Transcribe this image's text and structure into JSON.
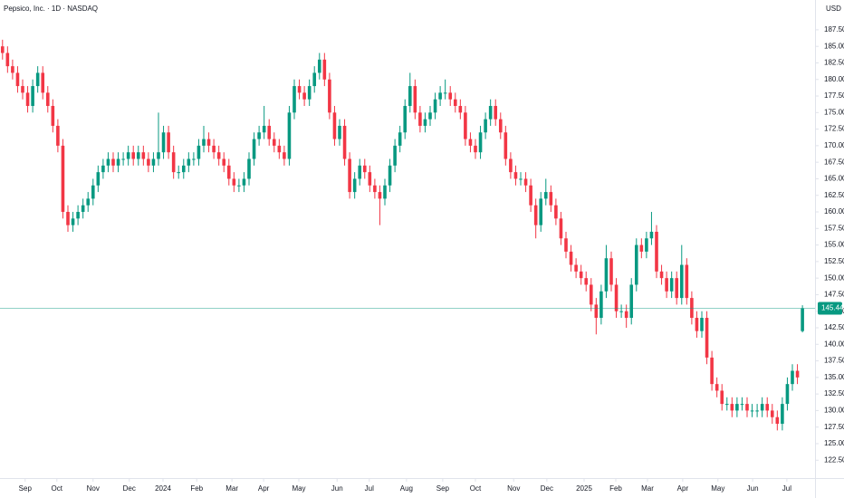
{
  "chart_data": {
    "type": "candlestick",
    "title": "Pepsico, Inc. · 1D · NASDAQ",
    "currency": "USD",
    "up_color": "#089981",
    "down_color": "#f23645",
    "grid": false,
    "last_price_line": true,
    "open": [
      185,
      184,
      182,
      181,
      179,
      178,
      176,
      179,
      181,
      178,
      176,
      173,
      170,
      160,
      158,
      159,
      160,
      161,
      162,
      164,
      166,
      167,
      168,
      167,
      168,
      168,
      169,
      168,
      169,
      168,
      167,
      168,
      169,
      172,
      169,
      166,
      166,
      167,
      168,
      168,
      170,
      171,
      170,
      169,
      168,
      167,
      165,
      164,
      164,
      165,
      168,
      171,
      172,
      173,
      171,
      170,
      169,
      168,
      175,
      179,
      178,
      177,
      179,
      181,
      183,
      180,
      175,
      171,
      173,
      168,
      163,
      165,
      167,
      166,
      164,
      163,
      162,
      164,
      167,
      170,
      172,
      176,
      179,
      175,
      173,
      174,
      175,
      177,
      178,
      178,
      177,
      176,
      175,
      171,
      170,
      169,
      172,
      174,
      176,
      174,
      172,
      168,
      166,
      165,
      165,
      164,
      161,
      158,
      162,
      163,
      161,
      159,
      156,
      154,
      152,
      151,
      150,
      149,
      146,
      144,
      148,
      153,
      149,
      145,
      145,
      144,
      149,
      155,
      154,
      156,
      157,
      151,
      150,
      148,
      150,
      147,
      152,
      147,
      144,
      142,
      144,
      138,
      134,
      133,
      131,
      131,
      130,
      131,
      131,
      130,
      130,
      130,
      131,
      130,
      129,
      128,
      131,
      134,
      136,
      142
    ],
    "high": [
      186,
      185,
      183,
      182,
      180,
      179,
      180,
      182,
      182,
      179,
      177,
      174,
      171,
      161,
      160,
      161,
      162,
      163,
      165,
      167,
      168,
      169,
      169,
      169,
      169,
      170,
      170,
      170,
      170,
      169,
      169,
      175,
      173,
      173,
      170,
      167,
      168,
      169,
      169,
      171,
      173,
      172,
      171,
      170,
      169,
      168,
      166,
      165,
      166,
      169,
      172,
      173,
      176,
      174,
      172,
      171,
      170,
      176,
      180,
      180,
      179,
      180,
      182,
      184,
      184,
      181,
      176,
      174,
      174,
      169,
      166,
      168,
      168,
      167,
      165,
      164,
      165,
      168,
      171,
      173,
      177,
      181,
      180,
      176,
      175,
      176,
      178,
      179,
      180,
      179,
      178,
      177,
      176,
      172,
      171,
      173,
      175,
      177,
      177,
      175,
      173,
      169,
      167,
      166,
      166,
      165,
      162,
      163,
      165,
      164,
      162,
      160,
      157,
      155,
      153,
      152,
      151,
      150,
      147,
      149,
      155,
      154,
      150,
      146,
      146,
      150,
      156,
      156,
      157,
      160,
      158,
      152,
      151,
      151,
      151,
      155,
      153,
      148,
      145,
      145,
      145,
      139,
      135,
      134,
      132,
      132,
      132,
      132,
      132,
      131,
      131,
      132,
      132,
      131,
      130,
      132,
      135,
      137,
      137,
      145.9
    ],
    "low": [
      183,
      181,
      180,
      178,
      177,
      175,
      175,
      178,
      177,
      175,
      172,
      169,
      159,
      157,
      157,
      158,
      159,
      160,
      161,
      163,
      165,
      166,
      166,
      166,
      167,
      167,
      167,
      167,
      167,
      166,
      166,
      167,
      168,
      168,
      165,
      165,
      165,
      166,
      167,
      167,
      169,
      169,
      168,
      167,
      166,
      164,
      163,
      163,
      163,
      164,
      167,
      170,
      171,
      170,
      169,
      168,
      167,
      167,
      174,
      177,
      176,
      176,
      178,
      180,
      179,
      174,
      170,
      170,
      167,
      162,
      162,
      164,
      165,
      163,
      162,
      158,
      161,
      163,
      166,
      169,
      171,
      175,
      174,
      172,
      172,
      173,
      174,
      176,
      177,
      176,
      175,
      174,
      170,
      169,
      168,
      168,
      171,
      173,
      173,
      171,
      167,
      165,
      164,
      164,
      163,
      160,
      156,
      157,
      161,
      160,
      158,
      155,
      153,
      151,
      150,
      149,
      148,
      145,
      141.5,
      143,
      147,
      148,
      144,
      144,
      142.5,
      143,
      148,
      153,
      153,
      155,
      150,
      149,
      147,
      147,
      146,
      146,
      146,
      143,
      141,
      141,
      137,
      133,
      132,
      130,
      130,
      129,
      129,
      130,
      129,
      129,
      129,
      129,
      129,
      128,
      127,
      127,
      130,
      133,
      134,
      141.8
    ],
    "close": [
      184,
      182,
      181,
      179,
      178,
      176,
      179,
      181,
      178,
      176,
      173,
      170,
      160,
      158,
      159,
      160,
      161,
      162,
      164,
      166,
      167,
      168,
      167,
      168,
      168,
      169,
      168,
      169,
      168,
      167,
      168,
      169,
      172,
      169,
      166,
      166,
      167,
      168,
      168,
      170,
      171,
      170,
      169,
      168,
      167,
      165,
      164,
      164,
      165,
      168,
      171,
      172,
      173,
      171,
      170,
      169,
      168,
      175,
      179,
      178,
      177,
      179,
      181,
      183,
      180,
      175,
      171,
      173,
      168,
      163,
      165,
      167,
      166,
      164,
      163,
      162,
      164,
      167,
      170,
      172,
      176,
      179,
      175,
      173,
      174,
      175,
      177,
      178,
      178,
      177,
      176,
      175,
      171,
      170,
      169,
      172,
      174,
      176,
      174,
      172,
      168,
      166,
      165,
      165,
      164,
      161,
      158,
      162,
      163,
      161,
      159,
      156,
      154,
      152,
      151,
      150,
      149,
      146,
      144,
      148,
      153,
      149,
      145,
      145,
      144,
      149,
      155,
      154,
      156,
      157,
      151,
      150,
      148,
      150,
      147,
      152,
      147,
      144,
      142,
      144,
      138,
      134,
      133,
      131,
      131,
      130,
      131,
      131,
      130,
      130,
      130,
      131,
      130,
      129,
      128,
      131,
      134,
      136,
      135,
      145.44
    ],
    "xlim": [
      -0.5,
      161.5
    ],
    "xticks": [
      {
        "value": 4.5,
        "label": "Sep"
      },
      {
        "value": 10.8,
        "label": "Oct"
      },
      {
        "value": 18,
        "label": "Nov"
      },
      {
        "value": 25.2,
        "label": "Dec"
      },
      {
        "value": 31.9,
        "label": "2024"
      },
      {
        "value": 38.6,
        "label": "Feb"
      },
      {
        "value": 45.6,
        "label": "Mar"
      },
      {
        "value": 51.9,
        "label": "Apr"
      },
      {
        "value": 58.9,
        "label": "May"
      },
      {
        "value": 66.5,
        "label": "Jun"
      },
      {
        "value": 72.9,
        "label": "Jul"
      },
      {
        "value": 80.3,
        "label": "Aug"
      },
      {
        "value": 87.5,
        "label": "Sep"
      },
      {
        "value": 94,
        "label": "Oct"
      },
      {
        "value": 101.6,
        "label": "Nov"
      },
      {
        "value": 108.2,
        "label": "Dec"
      },
      {
        "value": 115.6,
        "label": "2025"
      },
      {
        "value": 121.9,
        "label": "Feb"
      },
      {
        "value": 128.2,
        "label": "Mar"
      },
      {
        "value": 135.2,
        "label": "Apr"
      },
      {
        "value": 142.2,
        "label": "May"
      },
      {
        "value": 149.1,
        "label": "Jun"
      },
      {
        "value": 155.9,
        "label": "Jul"
      }
    ],
    "ylim": [
      119.8,
      192.0
    ],
    "yticks": [
      {
        "value": 122.5,
        "label": "122.50"
      },
      {
        "value": 125,
        "label": "125.00"
      },
      {
        "value": 127.5,
        "label": "127.50"
      },
      {
        "value": 130,
        "label": "130.00"
      },
      {
        "value": 132.5,
        "label": "132.50"
      },
      {
        "value": 135,
        "label": "135.00"
      },
      {
        "value": 137.5,
        "label": "137.50"
      },
      {
        "value": 140,
        "label": "140.00"
      },
      {
        "value": 142.5,
        "label": "142.50"
      },
      {
        "value": 145,
        "label": "145.00"
      },
      {
        "value": 147.5,
        "label": "147.50"
      },
      {
        "value": 150,
        "label": "150.00"
      },
      {
        "value": 152.5,
        "label": "152.50"
      },
      {
        "value": 155,
        "label": "155.00"
      },
      {
        "value": 157.5,
        "label": "157.50"
      },
      {
        "value": 160,
        "label": "160.00"
      },
      {
        "value": 162.5,
        "label": "162.50"
      },
      {
        "value": 165,
        "label": "165.00"
      },
      {
        "value": 167.5,
        "label": "167.50"
      },
      {
        "value": 170,
        "label": "170.00"
      },
      {
        "value": 172.5,
        "label": "172.50"
      },
      {
        "value": 175,
        "label": "175.00"
      },
      {
        "value": 177.5,
        "label": "177.50"
      },
      {
        "value": 180,
        "label": "180.00"
      },
      {
        "value": 182.5,
        "label": "182.50"
      },
      {
        "value": 185,
        "label": "185.00"
      },
      {
        "value": 187.5,
        "label": "187.50"
      }
    ]
  }
}
